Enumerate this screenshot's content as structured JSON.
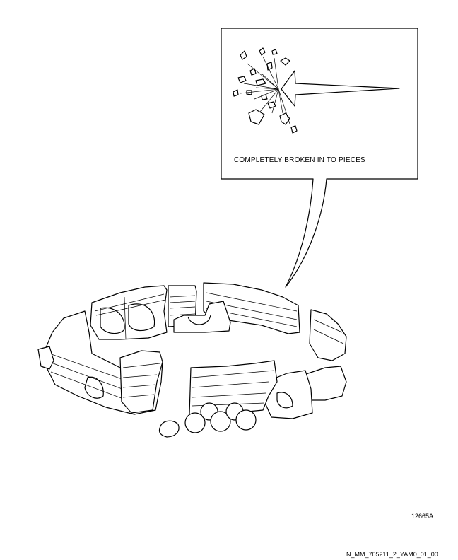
{
  "callout": {
    "caption": "COMPLETELY BROKEN IN TO PIECES"
  },
  "figure": {
    "number": "12665A",
    "drawing_id": "N_MM_705211_2_YAM0_01_00"
  }
}
